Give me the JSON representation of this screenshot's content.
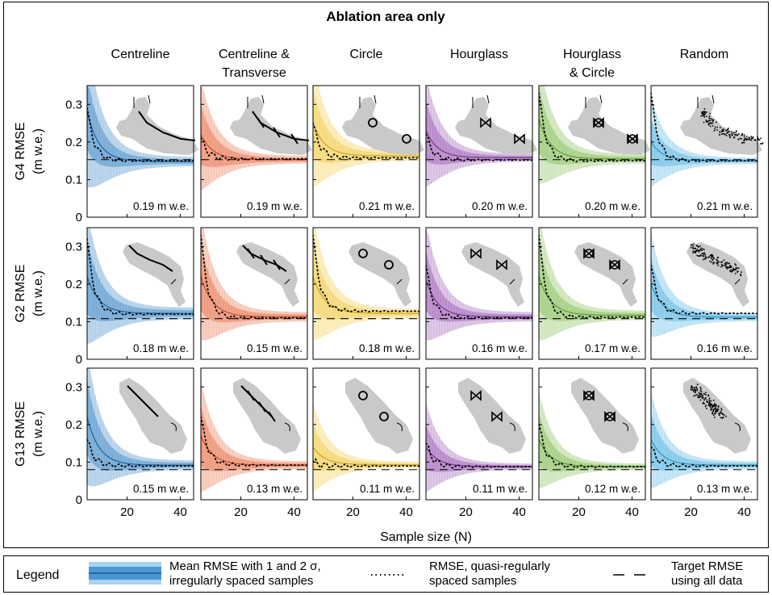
{
  "figure_title": "Ablation area only",
  "x_axis_label": "Sample size (N)",
  "legend": {
    "title": "Legend",
    "mean_line1": "Mean RMSE with 1 and 2 σ,",
    "mean_line2": "irregularly spaced samples",
    "dotted_line1": "RMSE, quasi-regularly",
    "dotted_line2": "spaced samples",
    "target_line1": "Target RMSE",
    "target_line2": "using all data"
  },
  "colors": {
    "Centreline": "#1f74bd",
    "Centreline & Transverse": "#e55a2b",
    "Circle": "#f0c228",
    "Hourglass": "#8a3fa8",
    "Hourglass & Circle": "#6fb43c",
    "Random": "#3aa9de"
  },
  "chart_data": {
    "type": "line",
    "columns": [
      {
        "line1": "Centreline",
        "line2": ""
      },
      {
        "line1": "Centreline &",
        "line2": "Transverse"
      },
      {
        "line1": "Circle",
        "line2": ""
      },
      {
        "line1": "Hourglass",
        "line2": ""
      },
      {
        "line1": "Hourglass",
        "line2": "& Circle"
      },
      {
        "line1": "Random",
        "line2": ""
      }
    ],
    "row_labels": [
      "G4 RMSE",
      "G2 RMSE",
      "G13 RMSE"
    ],
    "y_unit": "(m w.e.)",
    "xlim": [
      5,
      45
    ],
    "ylim": [
      0,
      0.35
    ],
    "x_ticks": [
      "20",
      "40"
    ],
    "y_ticks": [
      "0",
      "0.1",
      "0.2",
      "0.3"
    ],
    "target_rmse": [
      0.153,
      0.108,
      0.08
    ],
    "panel_annotations": [
      [
        "0.19 m w.e.",
        "0.19 m w.e.",
        "0.21 m w.e.",
        "0.20 m w.e.",
        "0.20 m w.e.",
        "0.21 m w.e."
      ],
      [
        "0.18 m w.e.",
        "0.15 m w.e.",
        "0.18 m w.e.",
        "0.16 m w.e.",
        "0.17 m w.e.",
        "0.16 m w.e."
      ],
      [
        "0.15 m w.e.",
        "0.13 m w.e.",
        "0.11 m w.e.",
        "0.11 m w.e.",
        "0.12 m w.e.",
        "0.13 m w.e."
      ]
    ],
    "series": [
      [
        {
          "mean_start": 0.28,
          "mean_end": 0.148,
          "sigma1_start": 0.1,
          "sigma1_end": 0.006,
          "sigma2_start": 0.2,
          "sigma2_end": 0.012,
          "dotted_start": 0.29,
          "dotted_end": 0.15
        },
        {
          "mean_start": 0.22,
          "mean_end": 0.153,
          "sigma1_start": 0.08,
          "sigma1_end": 0.005,
          "sigma2_start": 0.15,
          "sigma2_end": 0.01,
          "dotted_start": 0.21,
          "dotted_end": 0.155
        },
        {
          "mean_start": 0.25,
          "mean_end": 0.163,
          "sigma1_start": 0.09,
          "sigma1_end": 0.006,
          "sigma2_start": 0.17,
          "sigma2_end": 0.012,
          "dotted_start": 0.25,
          "dotted_end": 0.158
        },
        {
          "mean_start": 0.23,
          "mean_end": 0.158,
          "sigma1_start": 0.08,
          "sigma1_end": 0.005,
          "sigma2_start": 0.15,
          "sigma2_end": 0.01,
          "dotted_start": 0.22,
          "dotted_end": 0.152
        },
        {
          "mean_start": 0.26,
          "mean_end": 0.155,
          "sigma1_start": 0.09,
          "sigma1_end": 0.006,
          "sigma2_start": 0.17,
          "sigma2_end": 0.012,
          "dotted_start": 0.33,
          "dotted_end": 0.15
        },
        {
          "mean_start": 0.2,
          "mean_end": 0.15,
          "sigma1_start": 0.06,
          "sigma1_end": 0.004,
          "sigma2_start": 0.12,
          "sigma2_end": 0.008,
          "dotted_start": 0.33,
          "dotted_end": 0.15
        }
      ],
      [
        {
          "mean_start": 0.22,
          "mean_end": 0.122,
          "sigma1_start": 0.1,
          "sigma1_end": 0.008,
          "sigma2_start": 0.18,
          "sigma2_end": 0.015,
          "dotted_start": 0.32,
          "dotted_end": 0.12
        },
        {
          "mean_start": 0.22,
          "mean_end": 0.113,
          "sigma1_start": 0.09,
          "sigma1_end": 0.006,
          "sigma2_start": 0.17,
          "sigma2_end": 0.012,
          "dotted_start": 0.33,
          "dotted_end": 0.11
        },
        {
          "mean_start": 0.22,
          "mean_end": 0.122,
          "sigma1_start": 0.09,
          "sigma1_end": 0.006,
          "sigma2_start": 0.17,
          "sigma2_end": 0.012,
          "dotted_start": 0.33,
          "dotted_end": 0.128
        },
        {
          "mean_start": 0.21,
          "mean_end": 0.113,
          "sigma1_start": 0.08,
          "sigma1_end": 0.006,
          "sigma2_start": 0.16,
          "sigma2_end": 0.012,
          "dotted_start": 0.25,
          "dotted_end": 0.11
        },
        {
          "mean_start": 0.22,
          "mean_end": 0.117,
          "sigma1_start": 0.09,
          "sigma1_end": 0.006,
          "sigma2_start": 0.17,
          "sigma2_end": 0.012,
          "dotted_start": 0.33,
          "dotted_end": 0.112
        },
        {
          "mean_start": 0.2,
          "mean_end": 0.112,
          "sigma1_start": 0.07,
          "sigma1_end": 0.005,
          "sigma2_start": 0.14,
          "sigma2_end": 0.01,
          "dotted_start": 0.25,
          "dotted_end": 0.122
        }
      ],
      [
        {
          "mean_start": 0.22,
          "mean_end": 0.092,
          "sigma1_start": 0.1,
          "sigma1_end": 0.006,
          "sigma2_start": 0.18,
          "sigma2_end": 0.012,
          "dotted_start": 0.16,
          "dotted_end": 0.09
        },
        {
          "mean_start": 0.17,
          "mean_end": 0.092,
          "sigma1_start": 0.08,
          "sigma1_end": 0.005,
          "sigma2_start": 0.15,
          "sigma2_end": 0.01,
          "dotted_start": 0.22,
          "dotted_end": 0.092
        },
        {
          "mean_start": 0.14,
          "mean_end": 0.093,
          "sigma1_start": 0.06,
          "sigma1_end": 0.004,
          "sigma2_start": 0.12,
          "sigma2_end": 0.008,
          "dotted_start": 0.1,
          "dotted_end": 0.09
        },
        {
          "mean_start": 0.14,
          "mean_end": 0.088,
          "sigma1_start": 0.06,
          "sigma1_end": 0.004,
          "sigma2_start": 0.12,
          "sigma2_end": 0.008,
          "dotted_start": 0.15,
          "dotted_end": 0.088
        },
        {
          "mean_start": 0.16,
          "mean_end": 0.088,
          "sigma1_start": 0.07,
          "sigma1_end": 0.004,
          "sigma2_start": 0.13,
          "sigma2_end": 0.008,
          "dotted_start": 0.2,
          "dotted_end": 0.088
        },
        {
          "mean_start": 0.16,
          "mean_end": 0.092,
          "sigma1_start": 0.07,
          "sigma1_end": 0.005,
          "sigma2_start": 0.13,
          "sigma2_end": 0.01,
          "dotted_start": 0.14,
          "dotted_end": 0.09
        }
      ]
    ],
    "inset_patterns": [
      "line",
      "cross",
      "circles",
      "bowtie",
      "bowtie-circle",
      "scatter"
    ]
  }
}
